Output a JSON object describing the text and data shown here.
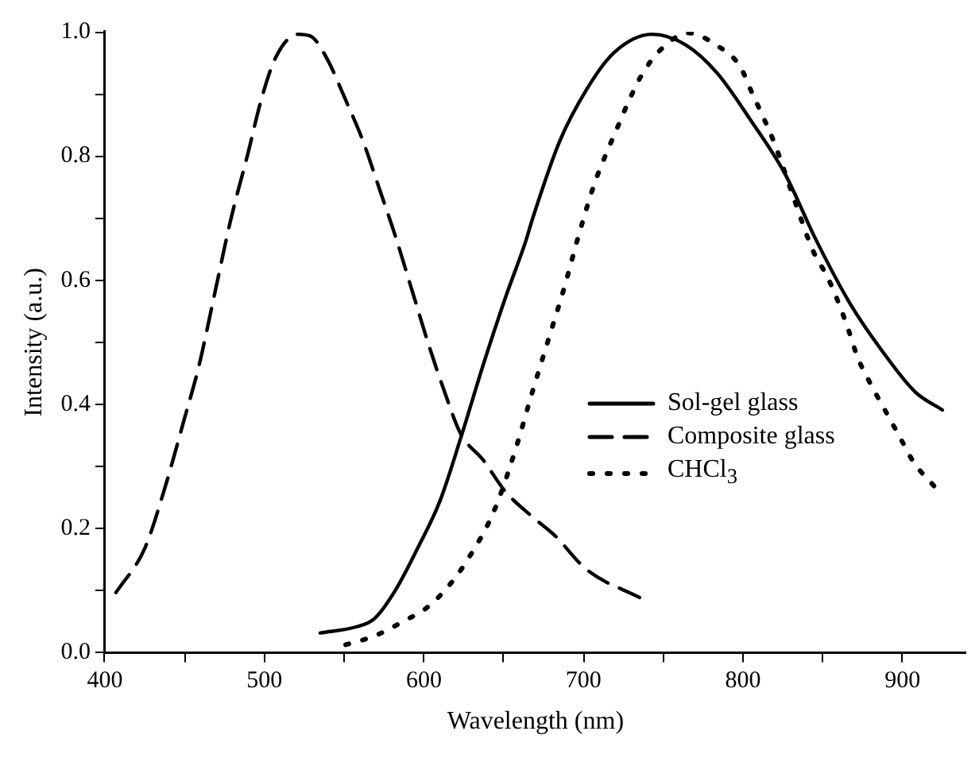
{
  "chart_data": {
    "type": "line",
    "xlabel": "Wavelength (nm)",
    "ylabel": "Intensity (a.u.)",
    "xlim": [
      400,
      940
    ],
    "ylim": [
      0,
      1
    ],
    "xticks": [
      400,
      {
        "value": 450,
        "label": null
      },
      500,
      {
        "value": 550,
        "label": null
      },
      600,
      {
        "value": 650,
        "label": null
      },
      700,
      {
        "value": 750,
        "label": null
      },
      800,
      {
        "value": 850,
        "label": null
      },
      900
    ],
    "yticks": [
      {
        "value": 0,
        "label": "0.0"
      },
      {
        "value": 0.1,
        "label": null
      },
      0.2,
      {
        "value": 0.3,
        "label": null
      },
      0.4,
      {
        "value": 0.5,
        "label": null
      },
      0.6,
      {
        "value": 0.7,
        "label": null
      },
      0.8,
      {
        "value": 0.9,
        "label": null
      },
      {
        "value": 1,
        "label": "1.0"
      }
    ],
    "grid": false,
    "legend": "center right",
    "marker": "none",
    "series": [
      {
        "name": "Sol-gel glass",
        "color": "#000000",
        "line_style": "solid",
        "x": [
          535,
          558,
          569,
          582,
          596,
          610,
          623,
          637,
          651,
          664,
          668,
          685,
          702,
          719,
          743,
          764,
          784,
          805,
          826,
          846,
          867,
          887,
          908,
          925
        ],
        "values": [
          0.032,
          0.042,
          0.055,
          0.1,
          0.168,
          0.244,
          0.345,
          0.462,
          0.571,
          0.664,
          0.698,
          0.823,
          0.907,
          0.966,
          0.996,
          0.979,
          0.933,
          0.857,
          0.773,
          0.664,
          0.563,
          0.487,
          0.42,
          0.391
        ]
      },
      {
        "name": "Composite glass",
        "color": "#000000",
        "line_style": "dashed",
        "x": [
          407,
          425,
          437,
          450,
          459,
          469,
          479,
          490,
          498,
          507,
          521,
          529,
          539,
          551,
          562,
          572,
          582,
          593,
          603,
          613,
          623,
          637,
          651,
          668,
          682,
          702,
          736
        ],
        "values": [
          0.097,
          0.168,
          0.26,
          0.378,
          0.462,
          0.58,
          0.698,
          0.807,
          0.89,
          0.958,
          0.996,
          0.993,
          0.958,
          0.89,
          0.823,
          0.748,
          0.672,
          0.58,
          0.496,
          0.42,
          0.353,
          0.311,
          0.26,
          0.219,
          0.189,
          0.134,
          0.088
        ]
      },
      {
        "name": "CHCl$_{3}$",
        "color": "#000000",
        "line_style": "dotted",
        "x": [
          551,
          569,
          586,
          604,
          620,
          631,
          640,
          647,
          658,
          668,
          678,
          688,
          697,
          707,
          714,
          721,
          728,
          736,
          748,
          766,
          783,
          798,
          806,
          813,
          820,
          832,
          844,
          853,
          860,
          866,
          872,
          880,
          889,
          898,
          907,
          921
        ],
        "values": [
          0.013,
          0.027,
          0.049,
          0.077,
          0.122,
          0.165,
          0.206,
          0.248,
          0.332,
          0.42,
          0.504,
          0.588,
          0.672,
          0.756,
          0.802,
          0.844,
          0.886,
          0.928,
          0.97,
          0.998,
          0.979,
          0.945,
          0.9,
          0.861,
          0.819,
          0.731,
          0.647,
          0.605,
          0.563,
          0.521,
          0.475,
          0.433,
          0.391,
          0.349,
          0.307,
          0.265
        ]
      }
    ]
  }
}
